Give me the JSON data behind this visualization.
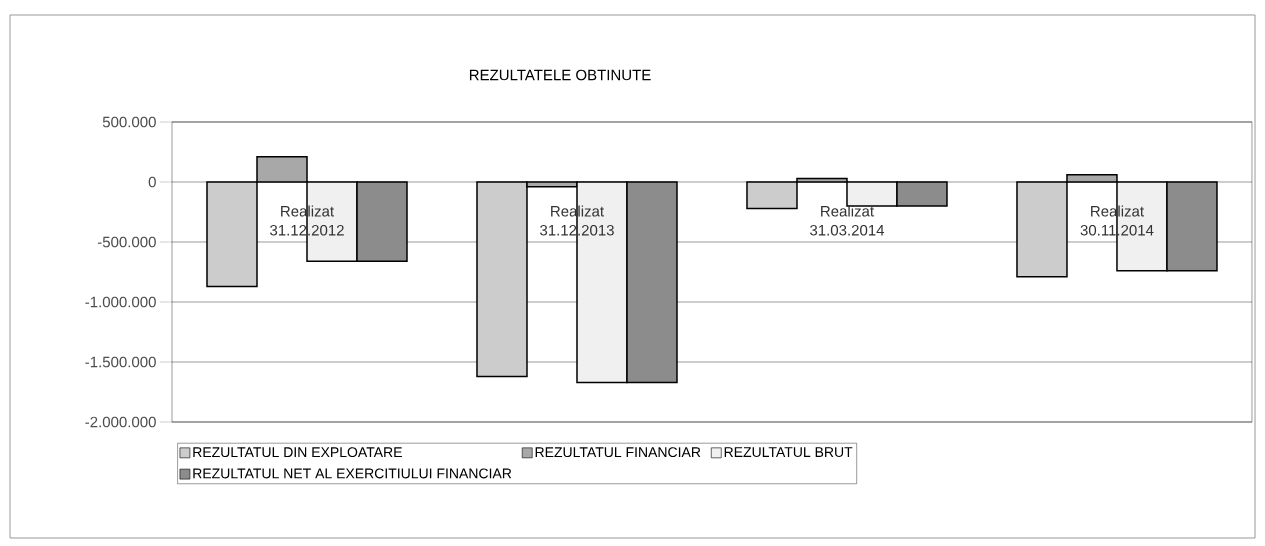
{
  "chart_data": {
    "type": "bar",
    "title": "REZULTATELE OBTINUTE",
    "categories": [
      "Realizat 31.12.2012",
      "Realizat 31.12.2013",
      "Realizat 31.03.2014",
      "Realizat 30.11.2014"
    ],
    "series": [
      {
        "name": "REZULTATUL DIN EXPLOATARE",
        "color": "#cccccc",
        "values": [
          -870000,
          -1620000,
          -220000,
          -790000
        ]
      },
      {
        "name": "REZULTATUL FINANCIAR",
        "color": "#a8a8a8",
        "values": [
          210000,
          -40000,
          30000,
          60000
        ]
      },
      {
        "name": "REZULTATUL BRUT",
        "color": "#f0f0f0",
        "values": [
          -660000,
          -1670000,
          -200000,
          -740000
        ]
      },
      {
        "name": "REZULTATUL NET AL EXERCITIULUI FINANCIAR",
        "color": "#8c8c8c",
        "values": [
          -660000,
          -1670000,
          -200000,
          -740000
        ]
      }
    ],
    "ylim": [
      -2000000,
      500000
    ],
    "yticks": [
      {
        "value": -2000000,
        "label": "-2.000.000"
      },
      {
        "value": -1500000,
        "label": "-1.500.000"
      },
      {
        "value": -1000000,
        "label": "-1.000.000"
      },
      {
        "value": -500000,
        "label": "-500.000"
      },
      {
        "value": 0,
        "label": "0"
      },
      {
        "value": 500000,
        "label": "500.000"
      }
    ],
    "grid": true,
    "legend": "bottom"
  }
}
